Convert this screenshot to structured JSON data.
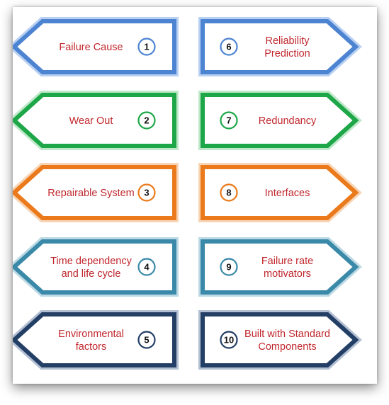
{
  "items": [
    {
      "number": "1",
      "lines": [
        "Failure Cause"
      ],
      "color": "#4d84d2",
      "shade": "#b8d0f2"
    },
    {
      "number": "2",
      "lines": [
        "Wear Out"
      ],
      "color": "#1ea748",
      "shade": "#bfe8c9"
    },
    {
      "number": "3",
      "lines": [
        "Repairable System"
      ],
      "color": "#ea7a1b",
      "shade": "#f7d4b4"
    },
    {
      "number": "4",
      "lines": [
        "Time dependency",
        "and life cycle"
      ],
      "color": "#3a89a8",
      "shade": "#bcd9e4"
    },
    {
      "number": "5",
      "lines": [
        "Environmental",
        "factors"
      ],
      "color": "#243f66",
      "shade": "#b3bfd2"
    },
    {
      "number": "6",
      "lines": [
        "Reliability",
        "Prediction"
      ],
      "color": "#4d84d2",
      "shade": "#b8d0f2"
    },
    {
      "number": "7",
      "lines": [
        "Redundancy"
      ],
      "color": "#1ea748",
      "shade": "#bfe8c9"
    },
    {
      "number": "8",
      "lines": [
        "Interfaces"
      ],
      "color": "#ea7a1b",
      "shade": "#f7d4b4"
    },
    {
      "number": "9",
      "lines": [
        "Failure rate",
        "motivators"
      ],
      "color": "#3a89a8",
      "shade": "#bcd9e4"
    },
    {
      "number": "10",
      "lines": [
        "Built with Standard",
        "Components"
      ],
      "color": "#243f66",
      "shade": "#b3bfd2"
    }
  ]
}
